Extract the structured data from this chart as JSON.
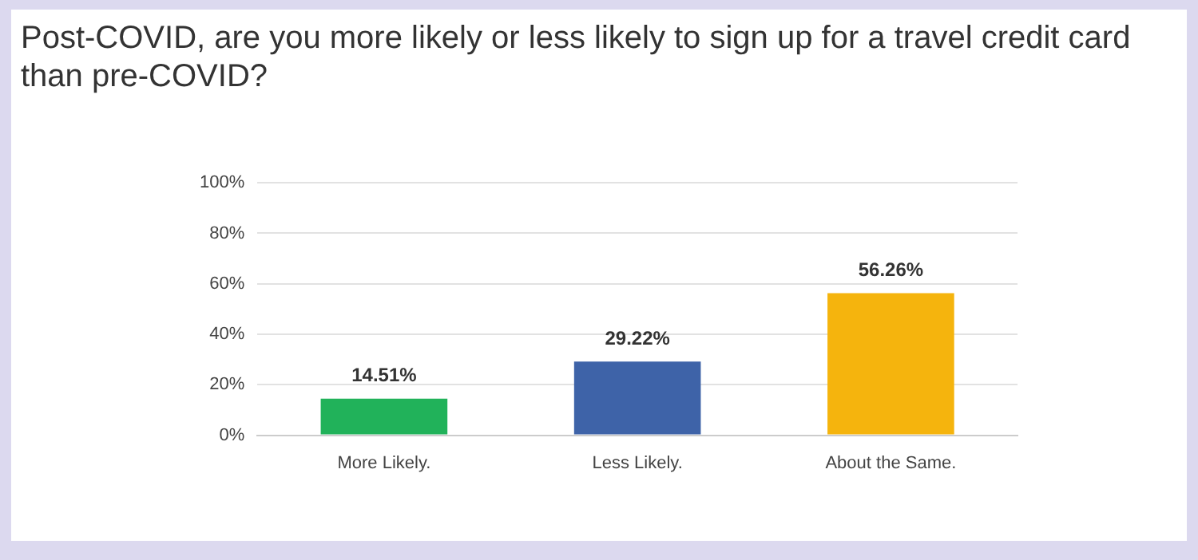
{
  "chart_data": {
    "type": "bar",
    "title": "Post-COVID, are you more likely or less likely to sign up for a travel credit card than pre-COVID?",
    "categories": [
      "More Likely.",
      "Less Likely.",
      "About the Same."
    ],
    "values": [
      14.51,
      29.22,
      56.26
    ],
    "colors": [
      "#21b25a",
      "#3e63a8",
      "#f5b40d"
    ],
    "value_labels": [
      "14.51%",
      "29.22%",
      "56.26%"
    ],
    "ylim": [
      0,
      100
    ],
    "yticks": [
      {
        "value": 0,
        "label": "0%"
      },
      {
        "value": 20,
        "label": "20%"
      },
      {
        "value": 40,
        "label": "40%"
      },
      {
        "value": 60,
        "label": "60%"
      },
      {
        "value": 80,
        "label": "80%"
      },
      {
        "value": 100,
        "label": "100%"
      }
    ],
    "grid": "y",
    "legend": false
  }
}
